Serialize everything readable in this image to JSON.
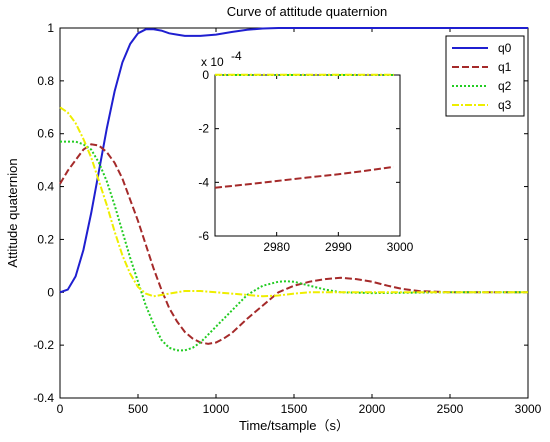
{
  "chart_data": {
    "type": "line",
    "title": "Curve of attitude quaternion",
    "xlabel": "Time/tsample（s）",
    "ylabel": "Attitude quaternion",
    "xlim": [
      0,
      3000
    ],
    "ylim": [
      -0.4,
      1
    ],
    "xticks": [
      "0",
      "500",
      "1000",
      "1500",
      "2000",
      "2500",
      "3000"
    ],
    "yticks": [
      "-0.4",
      "-0.2",
      "0",
      "0.2",
      "0.4",
      "0.6",
      "0.8",
      "1"
    ],
    "legend_position": "top-right",
    "series": [
      {
        "name": "q0",
        "color": "#1f1fd0",
        "dash": "solid",
        "x": [
          0,
          50,
          100,
          150,
          200,
          250,
          300,
          350,
          400,
          450,
          500,
          550,
          600,
          650,
          700,
          750,
          800,
          900,
          1000,
          1100,
          1200,
          1300,
          1400,
          1500,
          2000,
          2500,
          3000
        ],
        "y": [
          0,
          0.01,
          0.06,
          0.16,
          0.3,
          0.46,
          0.62,
          0.76,
          0.87,
          0.94,
          0.98,
          0.995,
          0.995,
          0.99,
          0.98,
          0.975,
          0.97,
          0.97,
          0.975,
          0.985,
          0.993,
          0.998,
          1.0,
          1.0,
          1.0,
          1.0,
          1.0
        ]
      },
      {
        "name": "q1",
        "color": "#a52a2a",
        "dash": "dashed",
        "x": [
          0,
          50,
          100,
          150,
          200,
          250,
          300,
          350,
          400,
          450,
          500,
          550,
          600,
          650,
          700,
          750,
          800,
          850,
          900,
          950,
          1000,
          1050,
          1100,
          1200,
          1300,
          1400,
          1500,
          1600,
          1700,
          1800,
          1900,
          2000,
          2100,
          2200,
          2300,
          2500,
          3000
        ],
        "y": [
          0.41,
          0.46,
          0.5,
          0.54,
          0.56,
          0.555,
          0.53,
          0.49,
          0.43,
          0.35,
          0.27,
          0.18,
          0.09,
          0.01,
          -0.06,
          -0.11,
          -0.15,
          -0.175,
          -0.19,
          -0.195,
          -0.19,
          -0.175,
          -0.155,
          -0.1,
          -0.05,
          0.0,
          0.025,
          0.04,
          0.05,
          0.055,
          0.05,
          0.04,
          0.025,
          0.012,
          0.005,
          0.0,
          0.0
        ]
      },
      {
        "name": "q2",
        "color": "#22cc22",
        "dash": "dotted",
        "x": [
          0,
          100,
          150,
          200,
          250,
          300,
          350,
          400,
          450,
          500,
          550,
          600,
          650,
          700,
          750,
          800,
          850,
          900,
          950,
          1000,
          1100,
          1200,
          1300,
          1400,
          1450,
          1500,
          1600,
          1700,
          1800,
          2000,
          2500,
          3000
        ],
        "y": [
          0.57,
          0.57,
          0.56,
          0.54,
          0.49,
          0.42,
          0.33,
          0.23,
          0.13,
          0.04,
          -0.05,
          -0.12,
          -0.18,
          -0.21,
          -0.22,
          -0.22,
          -0.21,
          -0.19,
          -0.16,
          -0.13,
          -0.07,
          -0.01,
          0.025,
          0.04,
          0.042,
          0.04,
          0.025,
          0.01,
          0.0,
          -0.003,
          0.0,
          0.0
        ]
      },
      {
        "name": "q3",
        "color": "#eeee00",
        "dash": "dashdot",
        "x": [
          0,
          50,
          100,
          150,
          200,
          250,
          300,
          350,
          400,
          450,
          500,
          550,
          600,
          700,
          800,
          900,
          1000,
          1100,
          1200,
          1300,
          1400,
          1500,
          1600,
          2000,
          2500,
          3000
        ],
        "y": [
          0.7,
          0.68,
          0.64,
          0.58,
          0.51,
          0.42,
          0.33,
          0.23,
          0.14,
          0.07,
          0.02,
          -0.005,
          -0.015,
          -0.005,
          0.005,
          0.005,
          0.0,
          -0.005,
          -0.01,
          -0.015,
          -0.012,
          -0.005,
          0.0,
          0.0,
          0.0,
          0.0
        ]
      }
    ],
    "inset": {
      "exponent_label": "x 10",
      "exponent_power": "-4",
      "xlim": [
        2970,
        3000
      ],
      "ylim": [
        -6,
        0
      ],
      "xticks": [
        "2980",
        "2990",
        "3000"
      ],
      "yticks": [
        "-6",
        "-4",
        "-2",
        "0"
      ],
      "series": [
        {
          "name": "q2",
          "color": "#22cc22",
          "dash": "dotted",
          "x": [
            2970,
            2999
          ],
          "y": [
            0,
            0
          ]
        },
        {
          "name": "q3",
          "color": "#eeee00",
          "dash": "dashdot",
          "x": [
            2970,
            2999
          ],
          "y": [
            0.01,
            0.01
          ]
        },
        {
          "name": "q1",
          "color": "#a52a2a",
          "dash": "dashed",
          "x": [
            2970,
            2975,
            2980,
            2985,
            2990,
            2995,
            2999
          ],
          "y": [
            -4.2,
            -4.08,
            -3.95,
            -3.82,
            -3.7,
            -3.55,
            -3.42
          ]
        }
      ]
    }
  }
}
